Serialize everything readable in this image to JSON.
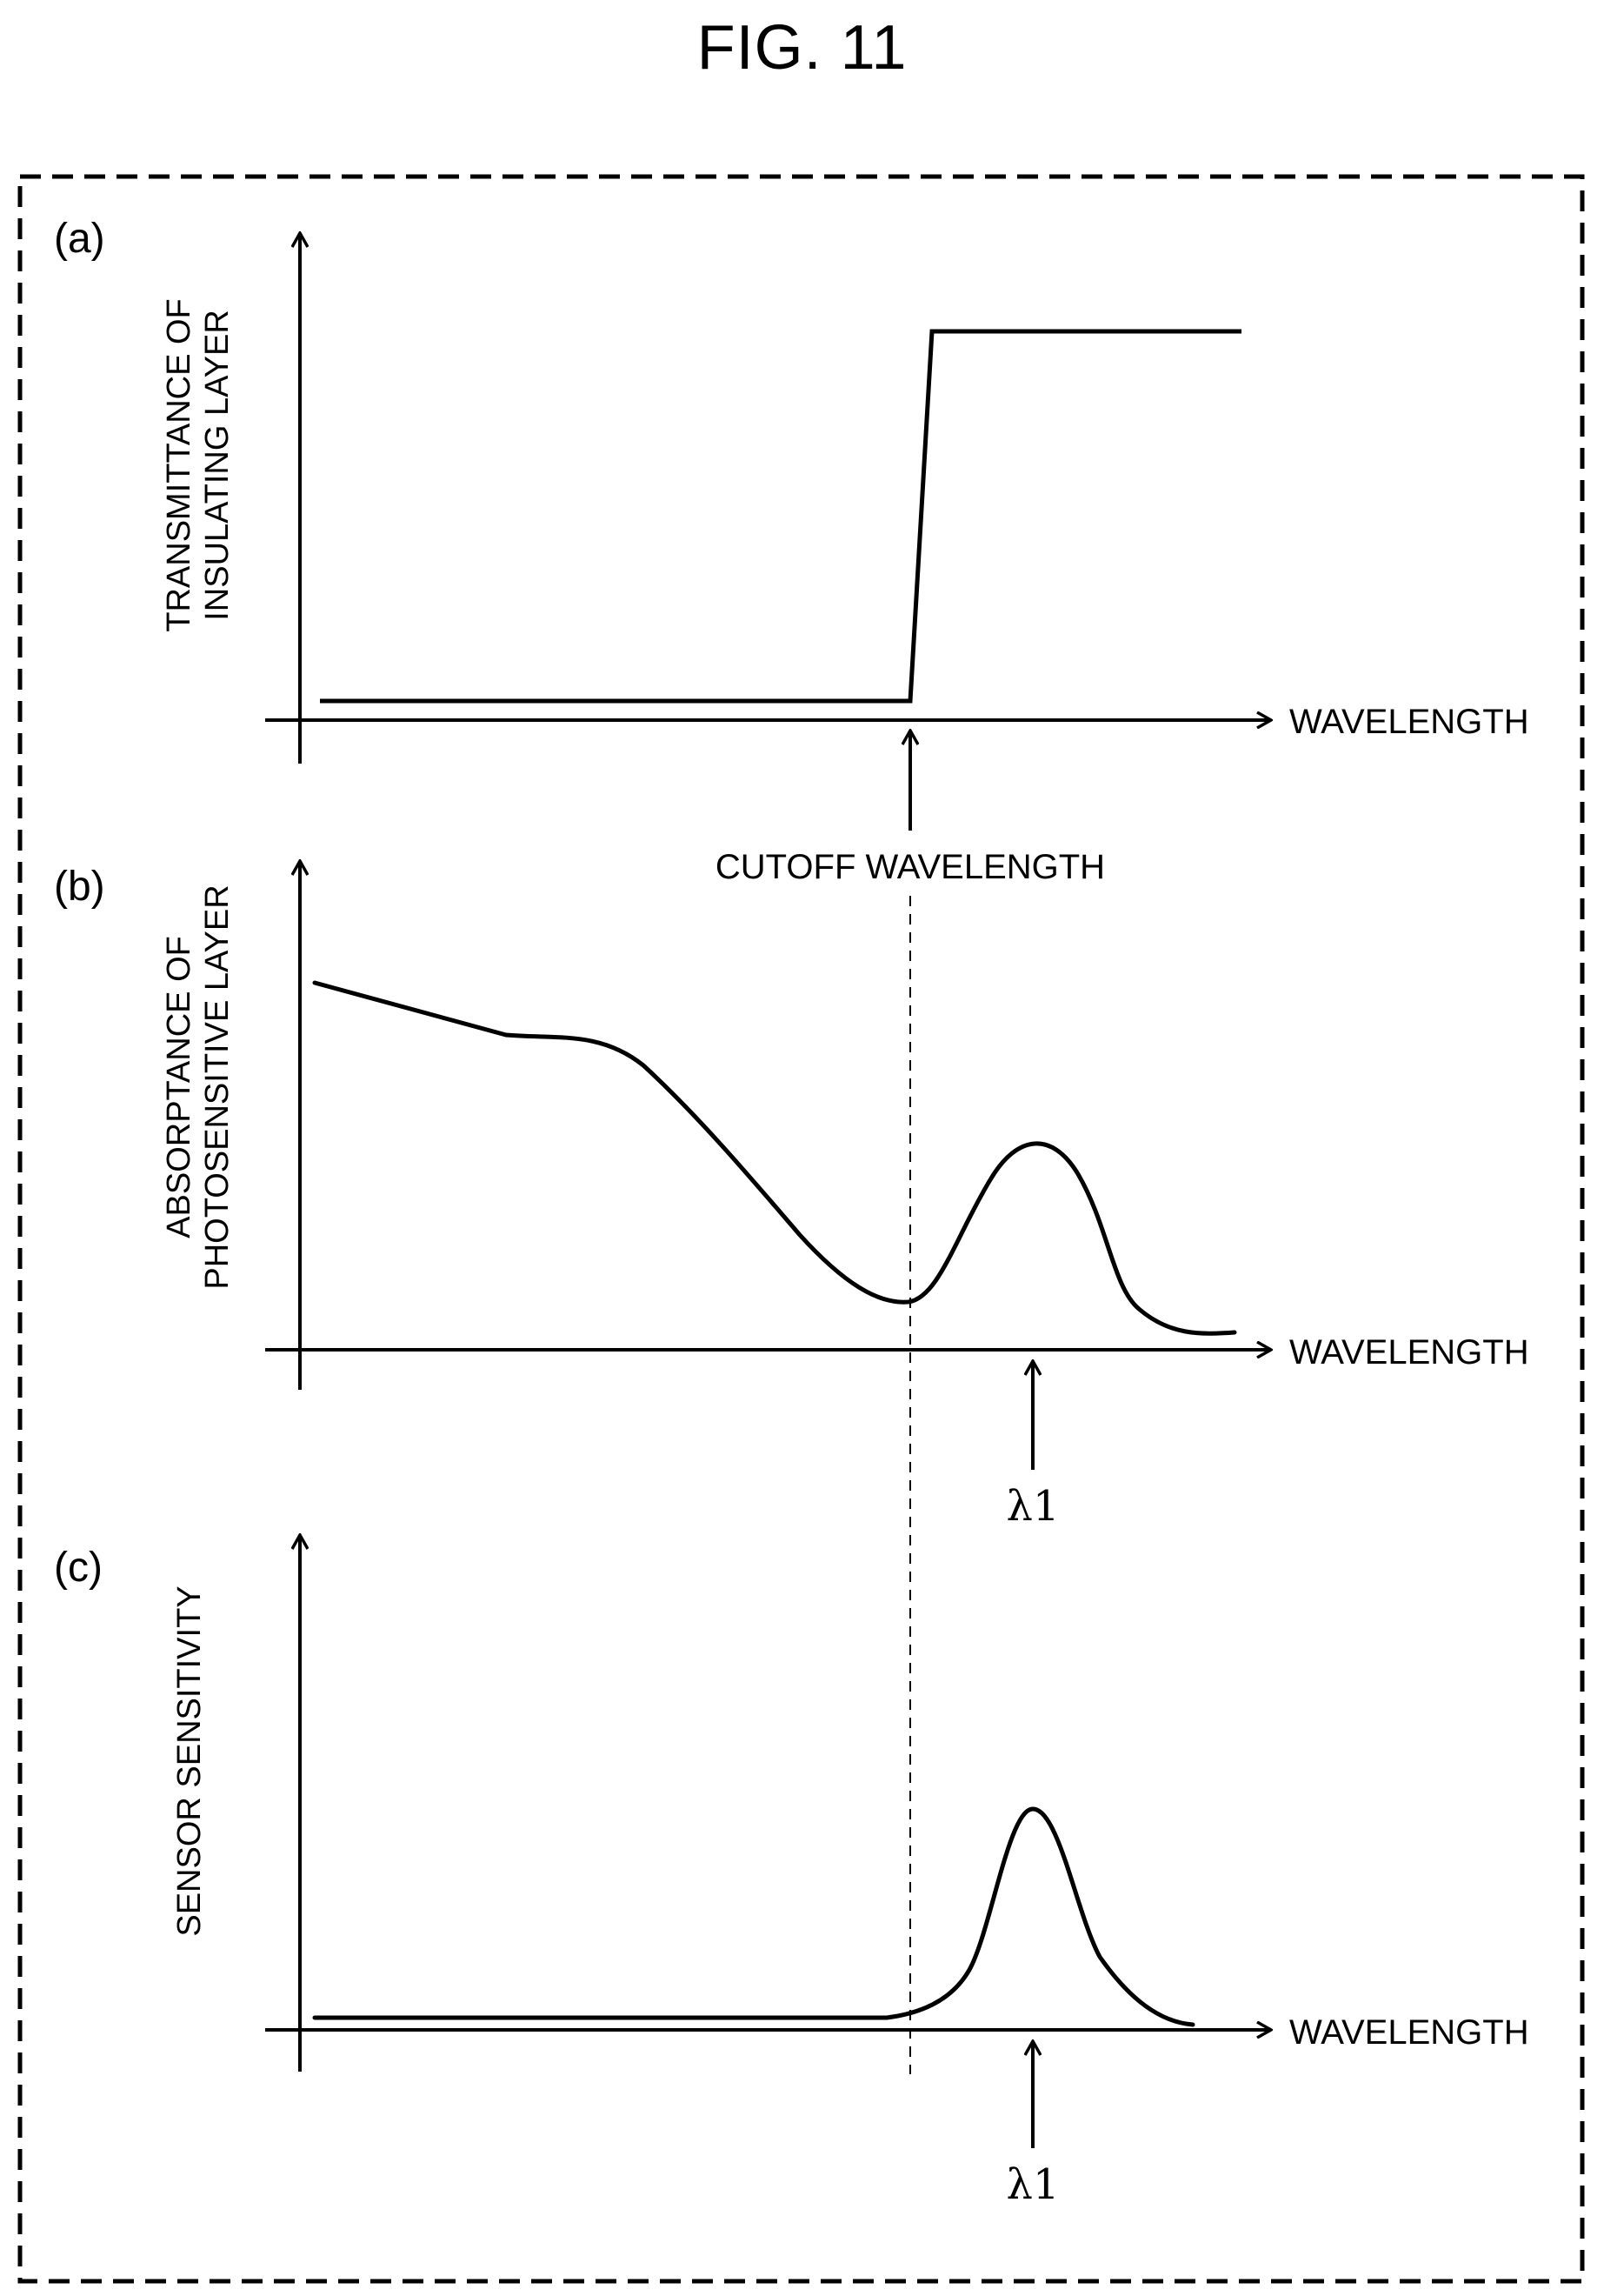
{
  "figure_title": "FIG. 11",
  "panels": {
    "a": {
      "panel_label": "(a)",
      "y_label_line1": "TRANSMITTANCE OF",
      "y_label_line2": "INSULATING LAYER",
      "x_label": "WAVELENGTH",
      "marker_label": "CUTOFF WAVELENGTH"
    },
    "b": {
      "panel_label": "(b)",
      "y_label_line1": "ABSORPTANCE OF",
      "y_label_line2": "PHOTOSENSITIVE LAYER",
      "x_label": "WAVELENGTH",
      "marker_label": "λ1"
    },
    "c": {
      "panel_label": "(c)",
      "y_label": "SENSOR SENSITIVITY",
      "x_label": "WAVELENGTH",
      "marker_label": "λ1"
    }
  },
  "colors": {
    "line": "#000000",
    "background": "#ffffff"
  }
}
